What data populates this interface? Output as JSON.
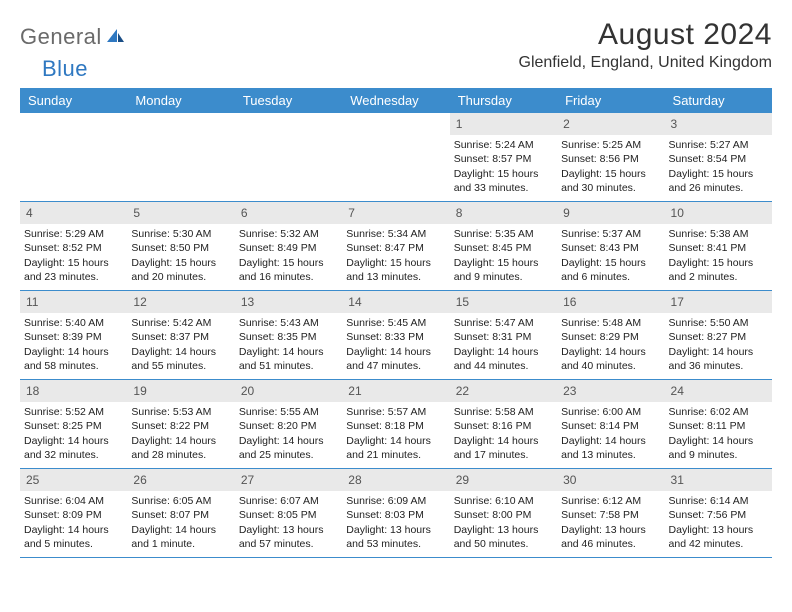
{
  "logo": {
    "general": "General",
    "blue": "Blue"
  },
  "title": "August 2024",
  "location": "Glenfield, England, United Kingdom",
  "colors": {
    "header_bg": "#3c8ccc",
    "daynum_bg": "#e9e9e9",
    "rule": "#3c8ccc",
    "logo_gray": "#6a6a6a",
    "logo_blue": "#2f78c1"
  },
  "dayNames": [
    "Sunday",
    "Monday",
    "Tuesday",
    "Wednesday",
    "Thursday",
    "Friday",
    "Saturday"
  ],
  "weeks": [
    [
      {
        "n": "",
        "sr": "",
        "ss": "",
        "dl": ""
      },
      {
        "n": "",
        "sr": "",
        "ss": "",
        "dl": ""
      },
      {
        "n": "",
        "sr": "",
        "ss": "",
        "dl": ""
      },
      {
        "n": "",
        "sr": "",
        "ss": "",
        "dl": ""
      },
      {
        "n": "1",
        "sr": "Sunrise: 5:24 AM",
        "ss": "Sunset: 8:57 PM",
        "dl": "Daylight: 15 hours and 33 minutes."
      },
      {
        "n": "2",
        "sr": "Sunrise: 5:25 AM",
        "ss": "Sunset: 8:56 PM",
        "dl": "Daylight: 15 hours and 30 minutes."
      },
      {
        "n": "3",
        "sr": "Sunrise: 5:27 AM",
        "ss": "Sunset: 8:54 PM",
        "dl": "Daylight: 15 hours and 26 minutes."
      }
    ],
    [
      {
        "n": "4",
        "sr": "Sunrise: 5:29 AM",
        "ss": "Sunset: 8:52 PM",
        "dl": "Daylight: 15 hours and 23 minutes."
      },
      {
        "n": "5",
        "sr": "Sunrise: 5:30 AM",
        "ss": "Sunset: 8:50 PM",
        "dl": "Daylight: 15 hours and 20 minutes."
      },
      {
        "n": "6",
        "sr": "Sunrise: 5:32 AM",
        "ss": "Sunset: 8:49 PM",
        "dl": "Daylight: 15 hours and 16 minutes."
      },
      {
        "n": "7",
        "sr": "Sunrise: 5:34 AM",
        "ss": "Sunset: 8:47 PM",
        "dl": "Daylight: 15 hours and 13 minutes."
      },
      {
        "n": "8",
        "sr": "Sunrise: 5:35 AM",
        "ss": "Sunset: 8:45 PM",
        "dl": "Daylight: 15 hours and 9 minutes."
      },
      {
        "n": "9",
        "sr": "Sunrise: 5:37 AM",
        "ss": "Sunset: 8:43 PM",
        "dl": "Daylight: 15 hours and 6 minutes."
      },
      {
        "n": "10",
        "sr": "Sunrise: 5:38 AM",
        "ss": "Sunset: 8:41 PM",
        "dl": "Daylight: 15 hours and 2 minutes."
      }
    ],
    [
      {
        "n": "11",
        "sr": "Sunrise: 5:40 AM",
        "ss": "Sunset: 8:39 PM",
        "dl": "Daylight: 14 hours and 58 minutes."
      },
      {
        "n": "12",
        "sr": "Sunrise: 5:42 AM",
        "ss": "Sunset: 8:37 PM",
        "dl": "Daylight: 14 hours and 55 minutes."
      },
      {
        "n": "13",
        "sr": "Sunrise: 5:43 AM",
        "ss": "Sunset: 8:35 PM",
        "dl": "Daylight: 14 hours and 51 minutes."
      },
      {
        "n": "14",
        "sr": "Sunrise: 5:45 AM",
        "ss": "Sunset: 8:33 PM",
        "dl": "Daylight: 14 hours and 47 minutes."
      },
      {
        "n": "15",
        "sr": "Sunrise: 5:47 AM",
        "ss": "Sunset: 8:31 PM",
        "dl": "Daylight: 14 hours and 44 minutes."
      },
      {
        "n": "16",
        "sr": "Sunrise: 5:48 AM",
        "ss": "Sunset: 8:29 PM",
        "dl": "Daylight: 14 hours and 40 minutes."
      },
      {
        "n": "17",
        "sr": "Sunrise: 5:50 AM",
        "ss": "Sunset: 8:27 PM",
        "dl": "Daylight: 14 hours and 36 minutes."
      }
    ],
    [
      {
        "n": "18",
        "sr": "Sunrise: 5:52 AM",
        "ss": "Sunset: 8:25 PM",
        "dl": "Daylight: 14 hours and 32 minutes."
      },
      {
        "n": "19",
        "sr": "Sunrise: 5:53 AM",
        "ss": "Sunset: 8:22 PM",
        "dl": "Daylight: 14 hours and 28 minutes."
      },
      {
        "n": "20",
        "sr": "Sunrise: 5:55 AM",
        "ss": "Sunset: 8:20 PM",
        "dl": "Daylight: 14 hours and 25 minutes."
      },
      {
        "n": "21",
        "sr": "Sunrise: 5:57 AM",
        "ss": "Sunset: 8:18 PM",
        "dl": "Daylight: 14 hours and 21 minutes."
      },
      {
        "n": "22",
        "sr": "Sunrise: 5:58 AM",
        "ss": "Sunset: 8:16 PM",
        "dl": "Daylight: 14 hours and 17 minutes."
      },
      {
        "n": "23",
        "sr": "Sunrise: 6:00 AM",
        "ss": "Sunset: 8:14 PM",
        "dl": "Daylight: 14 hours and 13 minutes."
      },
      {
        "n": "24",
        "sr": "Sunrise: 6:02 AM",
        "ss": "Sunset: 8:11 PM",
        "dl": "Daylight: 14 hours and 9 minutes."
      }
    ],
    [
      {
        "n": "25",
        "sr": "Sunrise: 6:04 AM",
        "ss": "Sunset: 8:09 PM",
        "dl": "Daylight: 14 hours and 5 minutes."
      },
      {
        "n": "26",
        "sr": "Sunrise: 6:05 AM",
        "ss": "Sunset: 8:07 PM",
        "dl": "Daylight: 14 hours and 1 minute."
      },
      {
        "n": "27",
        "sr": "Sunrise: 6:07 AM",
        "ss": "Sunset: 8:05 PM",
        "dl": "Daylight: 13 hours and 57 minutes."
      },
      {
        "n": "28",
        "sr": "Sunrise: 6:09 AM",
        "ss": "Sunset: 8:03 PM",
        "dl": "Daylight: 13 hours and 53 minutes."
      },
      {
        "n": "29",
        "sr": "Sunrise: 6:10 AM",
        "ss": "Sunset: 8:00 PM",
        "dl": "Daylight: 13 hours and 50 minutes."
      },
      {
        "n": "30",
        "sr": "Sunrise: 6:12 AM",
        "ss": "Sunset: 7:58 PM",
        "dl": "Daylight: 13 hours and 46 minutes."
      },
      {
        "n": "31",
        "sr": "Sunrise: 6:14 AM",
        "ss": "Sunset: 7:56 PM",
        "dl": "Daylight: 13 hours and 42 minutes."
      }
    ]
  ]
}
